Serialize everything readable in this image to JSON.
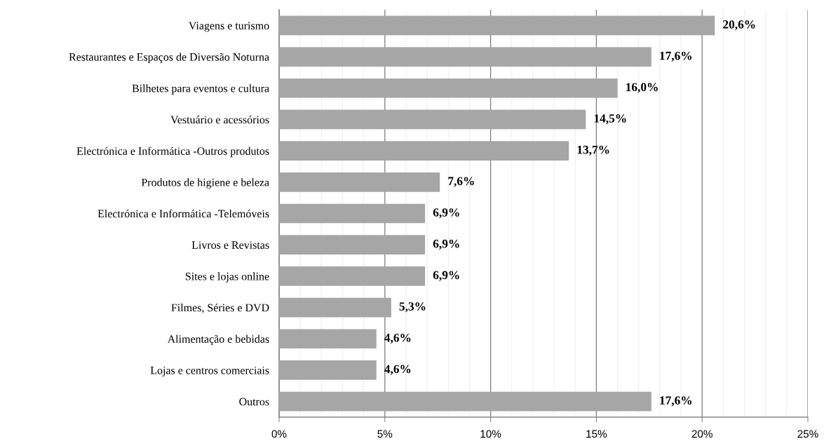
{
  "chart_data": {
    "type": "bar",
    "orientation": "horizontal",
    "categories": [
      "Viagens e turismo",
      "Restaurantes e Espaços de Diversão Noturna",
      "Bilhetes para eventos e cultura",
      "Vestuário e acessórios",
      "Electrónica e Informática -Outros produtos",
      "Produtos de higiene e beleza",
      "Electrónica e Informática -Telemóveis",
      "Livros e Revistas",
      "Sites e lojas online",
      "Filmes, Séries e DVD",
      "Alimentação e bebidas",
      "Lojas e centros comerciais",
      "Outros"
    ],
    "values": [
      20.6,
      17.6,
      16.0,
      14.5,
      13.7,
      7.6,
      6.9,
      6.9,
      6.9,
      5.3,
      4.6,
      4.6,
      17.6
    ],
    "value_labels": [
      "20,6%",
      "17,6%",
      "16,0%",
      "14,5%",
      "13,7%",
      "7,6%",
      "6,9%",
      "6,9%",
      "6,9%",
      "5,3%",
      "4,6%",
      "4,6%",
      "17,6%"
    ],
    "color": "#a6a6a6",
    "xlim": [
      0,
      25
    ],
    "xticks": [
      {
        "value": 0,
        "label": "0%"
      },
      {
        "value": 1,
        "label": null
      },
      {
        "value": 2,
        "label": null
      },
      {
        "value": 3,
        "label": null
      },
      {
        "value": 4,
        "label": null
      },
      {
        "value": 5,
        "label": "5%"
      },
      {
        "value": 6,
        "label": null
      },
      {
        "value": 7,
        "label": null
      },
      {
        "value": 8,
        "label": null
      },
      {
        "value": 9,
        "label": null
      },
      {
        "value": 10,
        "label": "10%"
      },
      {
        "value": 11,
        "label": null
      },
      {
        "value": 12,
        "label": null
      },
      {
        "value": 13,
        "label": null
      },
      {
        "value": 14,
        "label": null
      },
      {
        "value": 15,
        "label": "15%"
      },
      {
        "value": 16,
        "label": null
      },
      {
        "value": 17,
        "label": null
      },
      {
        "value": 18,
        "label": null
      },
      {
        "value": 19,
        "label": null
      },
      {
        "value": 20,
        "label": "20%"
      },
      {
        "value": 21,
        "label": null
      },
      {
        "value": 22,
        "label": null
      },
      {
        "value": 23,
        "label": null
      },
      {
        "value": 24,
        "label": null
      },
      {
        "value": 25,
        "label": "25%"
      }
    ],
    "grid": "x",
    "legend": false
  }
}
